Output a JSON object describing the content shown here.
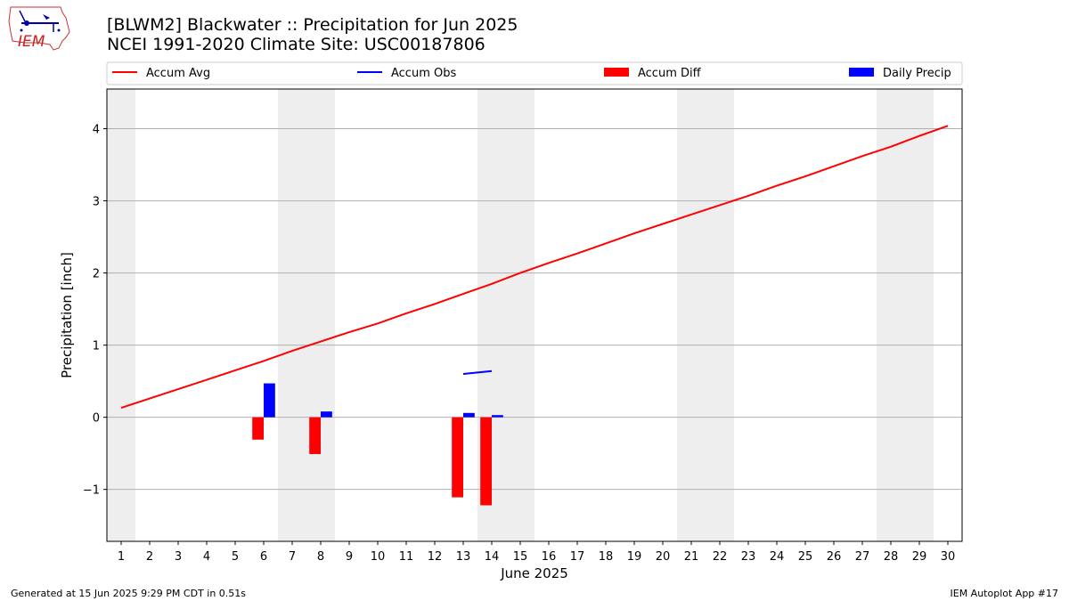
{
  "header": {
    "title_line1": "[BLWM2] Blackwater :: Precipitation for Jun 2025",
    "title_line2": "NCEI 1991-2020 Climate Site: USC00187806"
  },
  "footer": {
    "generated": "Generated at 15 Jun 2025 9:29 PM CDT in 0.51s",
    "app": "IEM Autoplot App #17"
  },
  "logo": {
    "text": "IEM",
    "icon": "iem-logo"
  },
  "chart_data": {
    "type": "bar",
    "xlabel": "June 2025",
    "ylabel": "Precipitation [inch]",
    "xlim": [
      0.5,
      30.5
    ],
    "ylim": [
      -1.72,
      4.55
    ],
    "yticks": [
      -1,
      0,
      1,
      2,
      3,
      4
    ],
    "ytick_labels": [
      "−1",
      "0",
      "1",
      "2",
      "3",
      "4"
    ],
    "days": [
      1,
      2,
      3,
      4,
      5,
      6,
      7,
      8,
      9,
      10,
      11,
      12,
      13,
      14,
      15,
      16,
      17,
      18,
      19,
      20,
      21,
      22,
      23,
      24,
      25,
      26,
      27,
      28,
      29,
      30
    ],
    "weekend_shading": [
      [
        0.5,
        1.5
      ],
      [
        6.5,
        8.5
      ],
      [
        13.5,
        15.5
      ],
      [
        20.5,
        22.5
      ],
      [
        27.5,
        29.5
      ]
    ],
    "grid": "horizontal",
    "legend_position": "top",
    "series": [
      {
        "name": "Accum Avg",
        "kind": "line",
        "color": "#ff0000",
        "x": [
          1,
          2,
          3,
          4,
          5,
          6,
          7,
          8,
          9,
          10,
          11,
          12,
          13,
          14,
          15,
          16,
          17,
          18,
          19,
          20,
          21,
          22,
          23,
          24,
          25,
          26,
          27,
          28,
          29,
          30
        ],
        "values": [
          0.13,
          0.26,
          0.39,
          0.52,
          0.65,
          0.78,
          0.92,
          1.05,
          1.18,
          1.3,
          1.44,
          1.57,
          1.71,
          1.85,
          2.0,
          2.14,
          2.27,
          2.41,
          2.55,
          2.68,
          2.81,
          2.94,
          3.07,
          3.21,
          3.34,
          3.48,
          3.62,
          3.75,
          3.9,
          4.04
        ]
      },
      {
        "name": "Accum Obs",
        "kind": "line",
        "color": "#0000ff",
        "x": [
          13,
          14
        ],
        "values": [
          0.6,
          0.64
        ]
      },
      {
        "name": "Accum Diff",
        "kind": "bar",
        "color": "#ff0000",
        "x": [
          6,
          8,
          13,
          14
        ],
        "values": [
          -0.31,
          -0.51,
          -1.11,
          -1.22
        ]
      },
      {
        "name": "Daily Precip",
        "kind": "bar",
        "color": "#0000ff",
        "x": [
          6,
          8,
          13,
          14
        ],
        "values": [
          0.47,
          0.08,
          0.06,
          0.03
        ]
      }
    ]
  }
}
